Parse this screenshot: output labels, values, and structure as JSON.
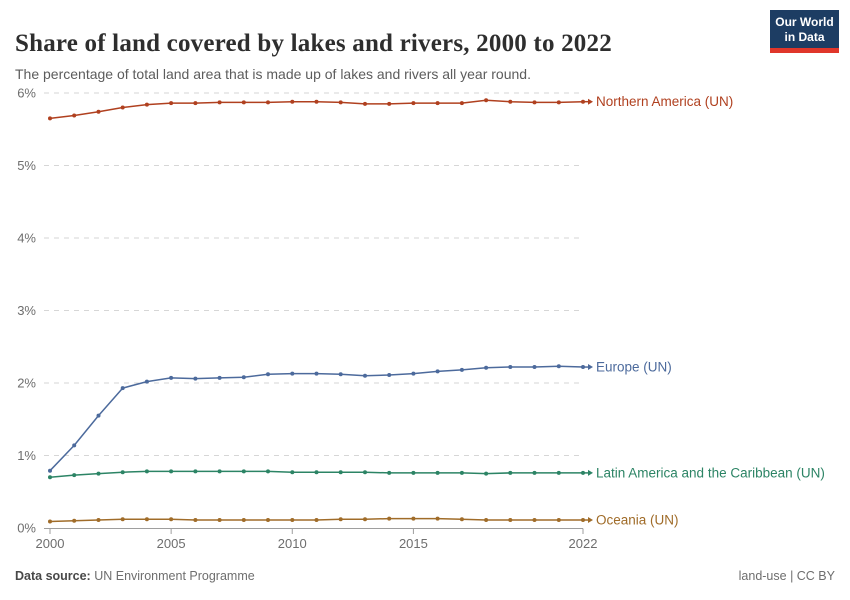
{
  "header": {
    "title": "Share of land covered by lakes and rivers, 2000 to 2022",
    "subtitle": "The percentage of total land area that is made up of lakes and rivers all year round.",
    "logo": {
      "line1": "Our World",
      "line2": "in Data"
    }
  },
  "footer": {
    "source_label": "Data source:",
    "source_value": "UN Environment Programme",
    "right_text": "land-use | CC BY"
  },
  "colors": {
    "logo_bg": "#1d3d63",
    "logo_accent": "#e0362a",
    "gridline": "#d6d6d6",
    "axis": "#9e9e9e",
    "tick_text": "#6e6e6e",
    "title_text": "#2e2e2e",
    "subtitle_text": "#5c5c5c",
    "footer_text": "#6e6e6e"
  },
  "chart_data": {
    "type": "line",
    "title": "Share of land covered by lakes and rivers, 2000 to 2022",
    "xlabel": "",
    "ylabel": "",
    "xlim": [
      2000,
      2022
    ],
    "ylim": [
      0,
      6
    ],
    "grid": "horizontal-dashed",
    "legend_position": "right-end-of-line-labels",
    "x": [
      2000,
      2001,
      2002,
      2003,
      2004,
      2005,
      2006,
      2007,
      2008,
      2009,
      2010,
      2011,
      2012,
      2013,
      2014,
      2015,
      2016,
      2017,
      2018,
      2019,
      2020,
      2021,
      2022
    ],
    "x_ticks": [
      {
        "value": 2000,
        "label": "2000"
      },
      {
        "value": 2005,
        "label": "2005"
      },
      {
        "value": 2010,
        "label": "2010"
      },
      {
        "value": 2015,
        "label": "2015"
      },
      {
        "value": 2022,
        "label": "2022"
      }
    ],
    "y_ticks": [
      {
        "value": 0,
        "label": "0%"
      },
      {
        "value": 1,
        "label": "1%"
      },
      {
        "value": 2,
        "label": "2%"
      },
      {
        "value": 3,
        "label": "3%"
      },
      {
        "value": 4,
        "label": "4%"
      },
      {
        "value": 5,
        "label": "5%"
      },
      {
        "value": 6,
        "label": "6%"
      }
    ],
    "series": [
      {
        "name": "Northern America (UN)",
        "color": "#b0401f",
        "values": [
          5.65,
          5.69,
          5.74,
          5.8,
          5.84,
          5.86,
          5.86,
          5.87,
          5.87,
          5.87,
          5.88,
          5.88,
          5.87,
          5.85,
          5.85,
          5.86,
          5.86,
          5.86,
          5.9,
          5.88,
          5.87,
          5.87,
          5.88
        ]
      },
      {
        "name": "Europe (UN)",
        "color": "#4c6a9c",
        "values": [
          0.79,
          1.14,
          1.55,
          1.93,
          2.02,
          2.07,
          2.06,
          2.07,
          2.08,
          2.12,
          2.13,
          2.13,
          2.12,
          2.1,
          2.11,
          2.13,
          2.16,
          2.18,
          2.21,
          2.22,
          2.22,
          2.23,
          2.22
        ]
      },
      {
        "name": "Latin America and the Caribbean (UN)",
        "color": "#2c8465",
        "values": [
          0.7,
          0.73,
          0.75,
          0.77,
          0.78,
          0.78,
          0.78,
          0.78,
          0.78,
          0.78,
          0.77,
          0.77,
          0.77,
          0.77,
          0.76,
          0.76,
          0.76,
          0.76,
          0.75,
          0.76,
          0.76,
          0.76,
          0.76
        ]
      },
      {
        "name": "Oceania (UN)",
        "color": "#a06c29",
        "values": [
          0.09,
          0.1,
          0.11,
          0.12,
          0.12,
          0.12,
          0.11,
          0.11,
          0.11,
          0.11,
          0.11,
          0.11,
          0.12,
          0.12,
          0.13,
          0.13,
          0.13,
          0.12,
          0.11,
          0.11,
          0.11,
          0.11,
          0.11
        ]
      }
    ]
  }
}
